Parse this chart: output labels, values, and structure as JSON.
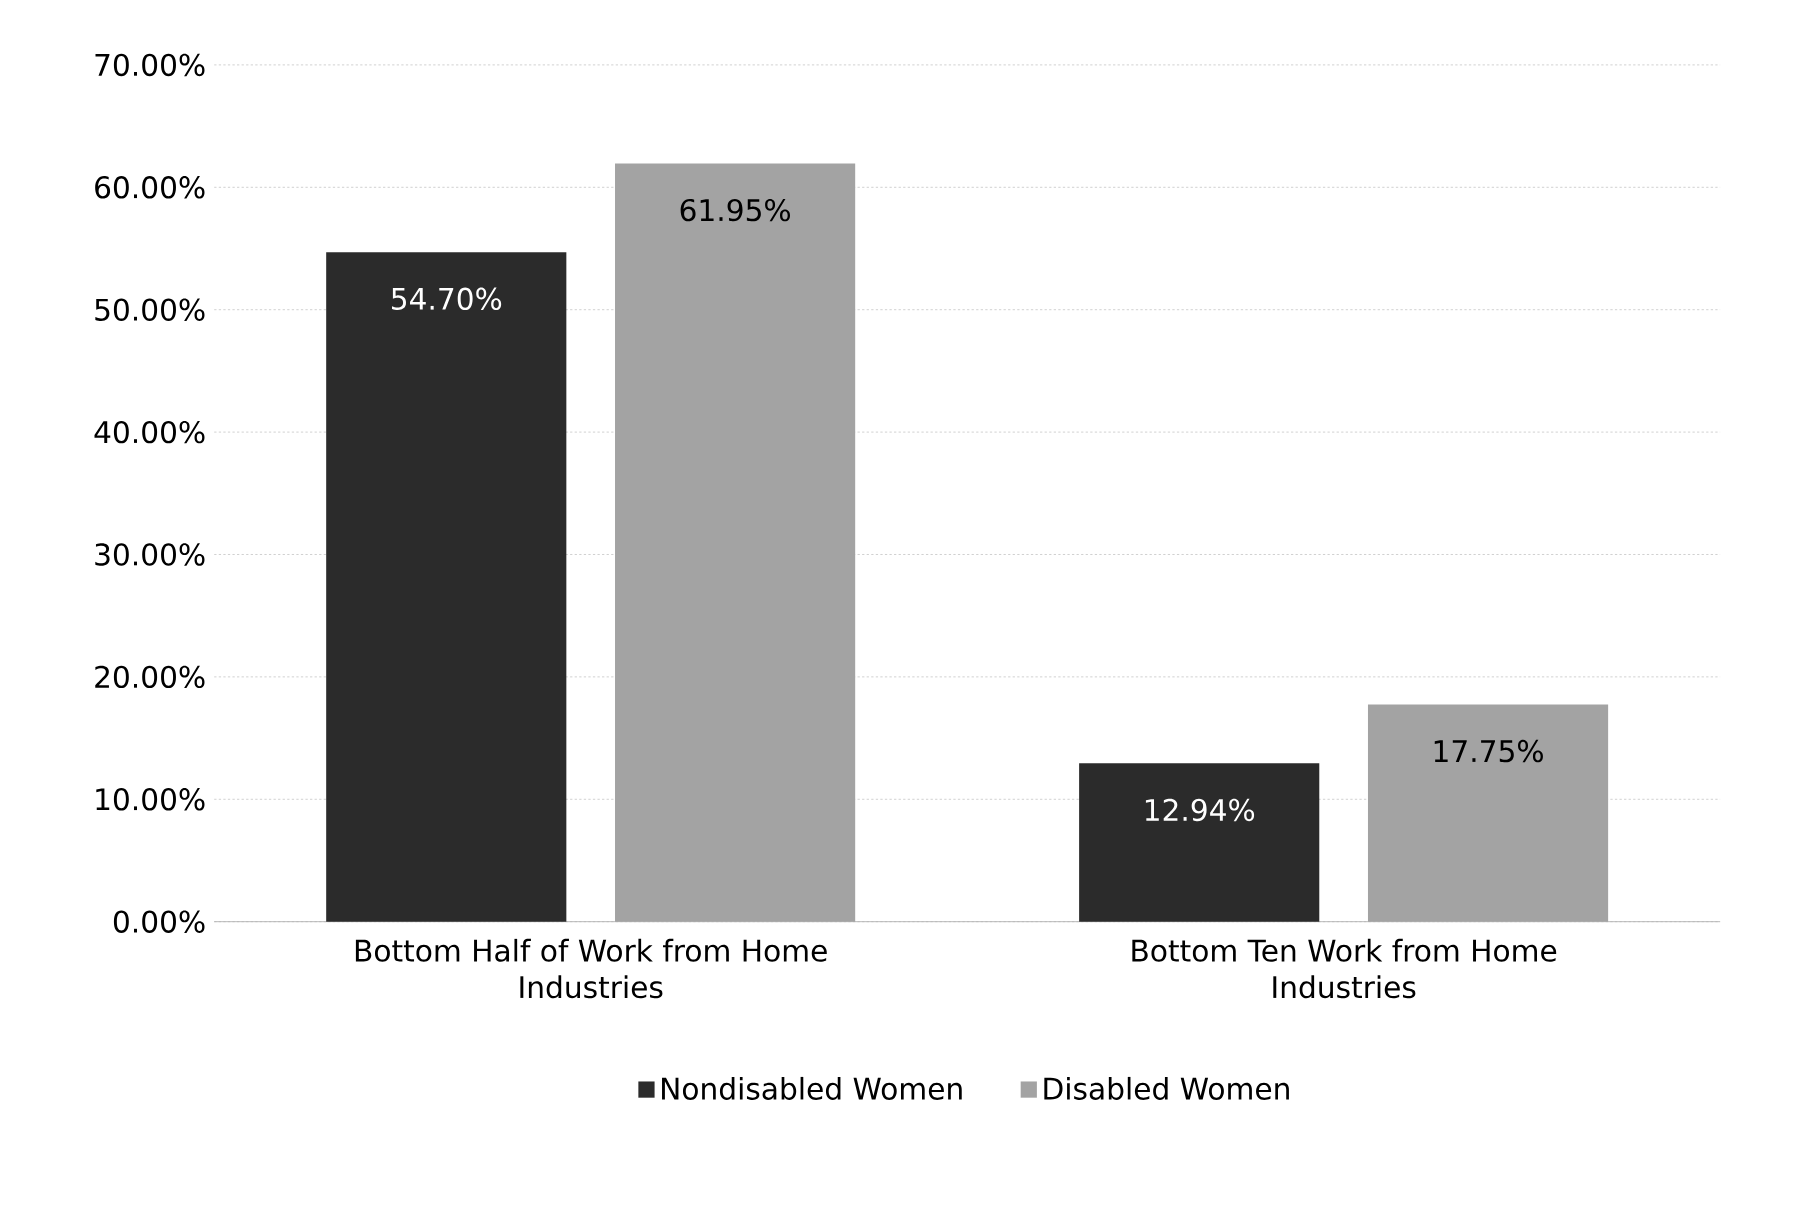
{
  "chart_data": {
    "type": "bar",
    "categories": [
      "Bottom Half of Work from Home Industries",
      "Bottom Ten Work from Home Industries"
    ],
    "series": [
      {
        "name": "Nondisabled Women",
        "color": "#2b2b2b",
        "values": [
          54.7,
          12.94
        ],
        "value_labels": [
          "54.70%",
          "12.94%"
        ]
      },
      {
        "name": "Disabled Women",
        "color": "#a3a3a3",
        "values": [
          61.95,
          17.75
        ],
        "value_labels": [
          "61.95%",
          "17.75%"
        ]
      }
    ],
    "ylim": [
      0,
      70
    ],
    "yticks": [
      {
        "value": 0,
        "label": "0.00%"
      },
      {
        "value": 10,
        "label": "10.00%"
      },
      {
        "value": 20,
        "label": "20.00%"
      },
      {
        "value": 30,
        "label": "30.00%"
      },
      {
        "value": 40,
        "label": "40.00%"
      },
      {
        "value": 50,
        "label": "50.00%"
      },
      {
        "value": 60,
        "label": "60.00%"
      },
      {
        "value": 70,
        "label": "70.00%"
      }
    ],
    "grid": "y",
    "legend": "bottom"
  }
}
